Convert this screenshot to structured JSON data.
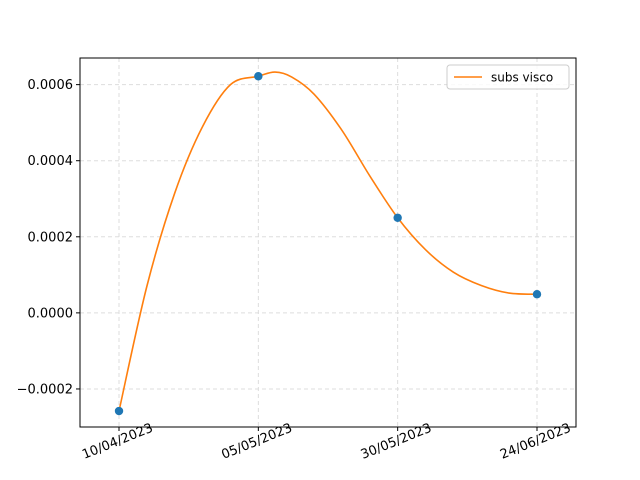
{
  "chart_data": {
    "type": "line",
    "title": "",
    "xlabel": "",
    "ylabel": "",
    "x_ticks": [
      "10/04/2023",
      "05/05/2023",
      "30/05/2023",
      "24/06/2023"
    ],
    "y_ticks": [
      "−0.0002",
      "0.0000",
      "0.0002",
      "0.0004",
      "0.0006"
    ],
    "y_tick_values": [
      -0.0002,
      0.0,
      0.0002,
      0.0004,
      0.0006
    ],
    "ylim": [
      -0.0003,
      0.00067
    ],
    "xlim": [
      "2023-04-03",
      "2023-07-01"
    ],
    "grid": true,
    "legend": {
      "position": "upper right",
      "entries": [
        "subs visco"
      ]
    },
    "scatter": {
      "dates": [
        "2023-04-10",
        "2023-05-05",
        "2023-05-30",
        "2023-06-24"
      ],
      "values": [
        -0.000258,
        0.000622,
        0.00025,
        4.9e-05
      ],
      "color": "#1f77b4"
    },
    "series": [
      {
        "name": "subs visco",
        "color": "#ff7f0e",
        "dates": [
          "2023-04-10",
          "2023-04-15",
          "2023-04-20",
          "2023-04-25",
          "2023-04-30",
          "2023-05-05",
          "2023-05-08",
          "2023-05-11",
          "2023-05-15",
          "2023-05-20",
          "2023-05-25",
          "2023-05-30",
          "2023-06-04",
          "2023-06-09",
          "2023-06-14",
          "2023-06-19",
          "2023-06-24"
        ],
        "values": [
          -0.000258,
          7e-05,
          0.000315,
          0.00049,
          0.0006,
          0.000622,
          0.000633,
          0.00062,
          0.000575,
          0.00048,
          0.00036,
          0.00025,
          0.000166,
          0.000107,
          7.2e-05,
          5.2e-05,
          4.9e-05
        ]
      }
    ]
  }
}
